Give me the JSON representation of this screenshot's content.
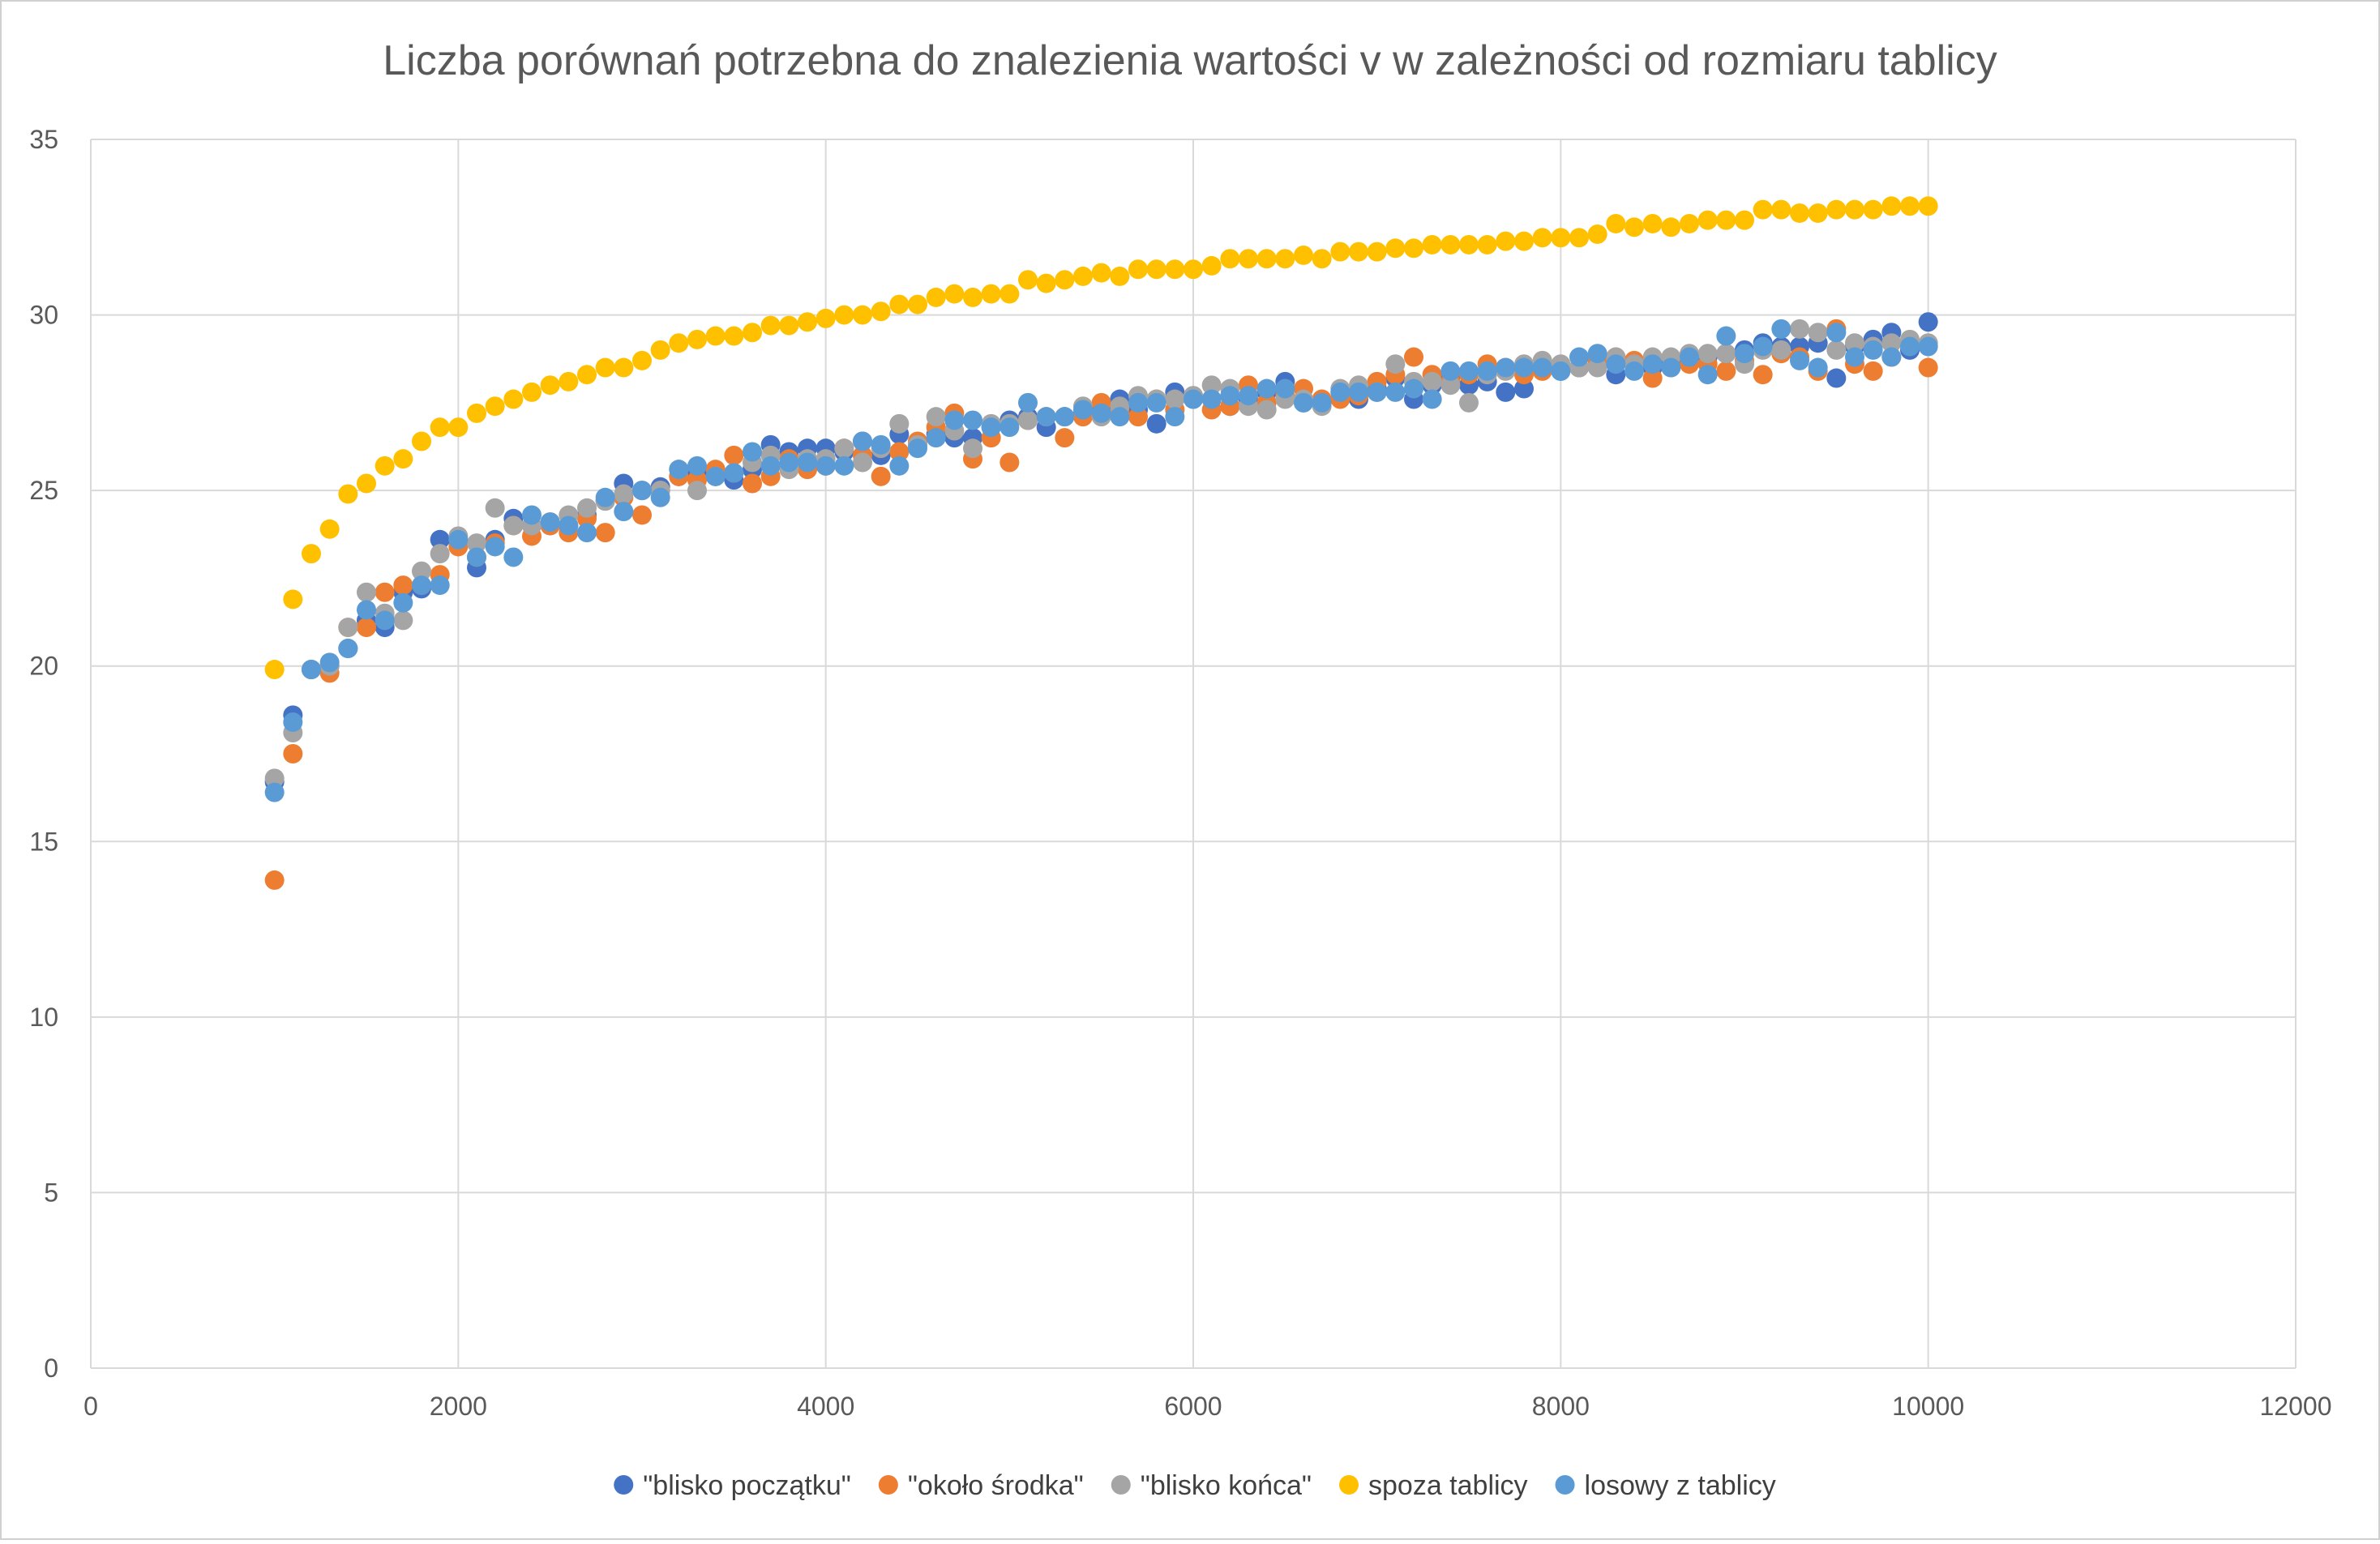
{
  "chart_data": {
    "type": "scatter",
    "title": "Liczba porównań potrzebna do znalezienia wartości v w zależności od rozmiaru tablicy",
    "xlabel": "",
    "ylabel": "",
    "xlim": [
      0,
      12000
    ],
    "ylim": [
      0,
      35
    ],
    "x_ticks": [
      0,
      2000,
      4000,
      6000,
      8000,
      10000,
      12000
    ],
    "y_ticks": [
      0,
      5,
      10,
      15,
      20,
      25,
      30,
      35
    ],
    "grid": true,
    "legend_position": "bottom",
    "x": [
      1000,
      1100,
      1200,
      1300,
      1400,
      1500,
      1600,
      1700,
      1800,
      1900,
      2000,
      2100,
      2200,
      2300,
      2400,
      2500,
      2600,
      2700,
      2800,
      2900,
      3000,
      3100,
      3200,
      3300,
      3400,
      3500,
      3600,
      3700,
      3800,
      3900,
      4000,
      4100,
      4200,
      4300,
      4400,
      4500,
      4600,
      4700,
      4800,
      4900,
      5000,
      5100,
      5200,
      5300,
      5400,
      5500,
      5600,
      5700,
      5800,
      5900,
      6000,
      6100,
      6200,
      6300,
      6400,
      6500,
      6600,
      6700,
      6800,
      6900,
      7000,
      7100,
      7200,
      7300,
      7400,
      7500,
      7600,
      7700,
      7800,
      7900,
      8000,
      8100,
      8200,
      8300,
      8400,
      8500,
      8600,
      8700,
      8800,
      8900,
      9000,
      9100,
      9200,
      9300,
      9400,
      9500,
      9600,
      9700,
      9800,
      9900,
      10000
    ],
    "series": [
      {
        "name": "\"blisko początku\"",
        "color": "#4472c4",
        "values": [
          16.7,
          18.6,
          19.9,
          20.0,
          20.5,
          21.3,
          21.1,
          22.1,
          22.2,
          23.6,
          23.5,
          22.8,
          23.6,
          24.2,
          24.0,
          24.0,
          24.0,
          24.3,
          24.7,
          25.2,
          25.0,
          25.1,
          25.4,
          25.5,
          25.4,
          25.3,
          25.6,
          26.3,
          26.1,
          26.2,
          26.2,
          26.1,
          26.4,
          26.0,
          26.6,
          26.3,
          26.6,
          26.5,
          26.5,
          26.8,
          27.0,
          27.1,
          26.8,
          27.1,
          27.2,
          27.4,
          27.6,
          27.3,
          26.9,
          27.8,
          27.6,
          27.6,
          27.4,
          27.6,
          27.8,
          28.1,
          27.5,
          27.5,
          27.8,
          27.6,
          27.9,
          28.2,
          27.6,
          28.0,
          28.2,
          28.0,
          28.1,
          27.8,
          27.9,
          28.6,
          28.4,
          28.5,
          28.7,
          28.3,
          28.6,
          28.5,
          28.7,
          28.8,
          28.8,
          28.9,
          29.0,
          29.2,
          29.1,
          29.1,
          29.2,
          28.2,
          29.1,
          29.3,
          29.5,
          29.0,
          29.8
        ]
      },
      {
        "name": "\"około środka\"",
        "color": "#ed7d31",
        "values": [
          13.9,
          17.5,
          19.9,
          19.8,
          21.1,
          21.1,
          22.1,
          22.3,
          22.3,
          22.6,
          23.4,
          23.1,
          23.5,
          24.0,
          23.7,
          24.0,
          23.8,
          24.2,
          23.8,
          24.8,
          24.3,
          25.0,
          25.4,
          25.3,
          25.6,
          26.0,
          25.2,
          25.4,
          25.9,
          25.6,
          25.7,
          26.2,
          26.0,
          25.4,
          26.1,
          26.4,
          26.8,
          27.2,
          25.9,
          26.5,
          25.8,
          27.0,
          27.1,
          26.5,
          27.1,
          27.5,
          27.3,
          27.1,
          27.6,
          27.3,
          27.7,
          27.3,
          27.4,
          28.0,
          27.5,
          27.7,
          27.9,
          27.6,
          27.6,
          27.7,
          28.1,
          28.3,
          28.8,
          28.3,
          28.1,
          28.3,
          28.6,
          28.5,
          28.3,
          28.4,
          28.5,
          28.5,
          28.7,
          28.8,
          28.7,
          28.2,
          28.5,
          28.6,
          28.6,
          28.4,
          28.7,
          28.3,
          28.9,
          28.8,
          28.4,
          29.6,
          28.6,
          28.4,
          28.8,
          29.2,
          28.5
        ]
      },
      {
        "name": "\"blisko końca\"",
        "color": "#a5a5a5",
        "values": [
          16.8,
          18.1,
          19.9,
          20.0,
          21.1,
          22.1,
          21.5,
          21.3,
          22.7,
          23.2,
          23.7,
          23.5,
          24.5,
          24.0,
          24.0,
          24.1,
          24.3,
          24.5,
          24.7,
          24.9,
          25.0,
          25.0,
          25.6,
          25.0,
          25.4,
          25.5,
          25.8,
          26.0,
          25.6,
          25.9,
          25.9,
          26.2,
          25.8,
          26.2,
          26.9,
          26.3,
          27.1,
          26.7,
          26.2,
          26.9,
          26.9,
          27.0,
          27.1,
          27.1,
          27.4,
          27.1,
          27.4,
          27.7,
          27.6,
          27.6,
          27.7,
          28.0,
          27.9,
          27.4,
          27.3,
          27.6,
          27.6,
          27.4,
          27.9,
          28.0,
          27.8,
          28.6,
          28.1,
          28.1,
          28.0,
          27.5,
          28.3,
          28.4,
          28.6,
          28.7,
          28.6,
          28.5,
          28.5,
          28.8,
          28.6,
          28.8,
          28.8,
          28.9,
          28.9,
          28.9,
          28.6,
          29.0,
          29.0,
          29.6,
          29.5,
          29.0,
          29.2,
          29.1,
          29.2,
          29.3,
          29.2
        ]
      },
      {
        "name": "spoza tablicy",
        "color": "#ffc000",
        "values": [
          19.9,
          21.9,
          23.2,
          23.9,
          24.9,
          25.2,
          25.7,
          25.9,
          26.4,
          26.8,
          26.8,
          27.2,
          27.4,
          27.6,
          27.8,
          28.0,
          28.1,
          28.3,
          28.5,
          28.5,
          28.7,
          29.0,
          29.2,
          29.3,
          29.4,
          29.4,
          29.5,
          29.7,
          29.7,
          29.8,
          29.9,
          30.0,
          30.0,
          30.1,
          30.3,
          30.3,
          30.5,
          30.6,
          30.5,
          30.6,
          30.6,
          31.0,
          30.9,
          31.0,
          31.1,
          31.2,
          31.1,
          31.3,
          31.3,
          31.3,
          31.3,
          31.4,
          31.6,
          31.6,
          31.6,
          31.6,
          31.7,
          31.6,
          31.8,
          31.8,
          31.8,
          31.9,
          31.9,
          32.0,
          32.0,
          32.0,
          32.0,
          32.1,
          32.1,
          32.2,
          32.2,
          32.2,
          32.3,
          32.6,
          32.5,
          32.6,
          32.5,
          32.6,
          32.7,
          32.7,
          32.7,
          33.0,
          33.0,
          32.9,
          32.9,
          33.0,
          33.0,
          33.0,
          33.1,
          33.1,
          33.1
        ]
      },
      {
        "name": "losowy z tablicy",
        "color": "#5b9bd5",
        "values": [
          16.4,
          18.4,
          19.9,
          20.1,
          20.5,
          21.6,
          21.3,
          21.8,
          22.3,
          22.3,
          23.6,
          23.1,
          23.4,
          23.1,
          24.3,
          24.1,
          24.0,
          23.8,
          24.8,
          24.4,
          25.0,
          24.8,
          25.6,
          25.7,
          25.4,
          25.5,
          26.1,
          25.7,
          25.8,
          25.8,
          25.7,
          25.7,
          26.4,
          26.3,
          25.7,
          26.2,
          26.5,
          27.0,
          27.0,
          26.8,
          26.8,
          27.5,
          27.1,
          27.1,
          27.3,
          27.2,
          27.1,
          27.5,
          27.5,
          27.1,
          27.6,
          27.6,
          27.7,
          27.7,
          27.9,
          27.9,
          27.5,
          27.5,
          27.8,
          27.8,
          27.8,
          27.8,
          27.9,
          27.6,
          28.4,
          28.4,
          28.4,
          28.5,
          28.5,
          28.5,
          28.4,
          28.8,
          28.9,
          28.6,
          28.4,
          28.6,
          28.5,
          28.8,
          28.3,
          29.4,
          28.9,
          29.1,
          29.6,
          28.7,
          28.5,
          29.5,
          28.8,
          29.0,
          28.8,
          29.1,
          29.1
        ]
      }
    ]
  }
}
